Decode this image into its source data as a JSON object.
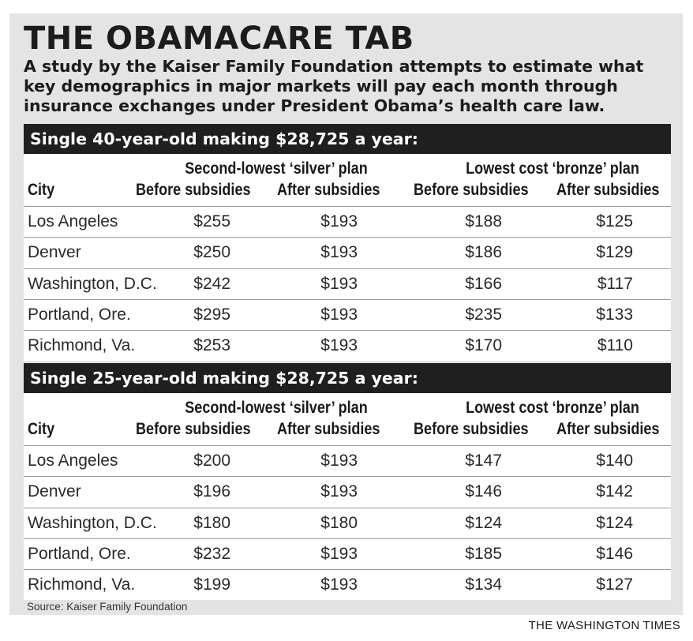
{
  "title": "THE OBAMACARE TAB",
  "subtitle": "A study by the Kaiser Family Foundation attempts to estimate what key demographics in major markets will pay each month through insurance exchanges under President Obama’s health care law.",
  "source": "Source: Kaiser Family Foundation",
  "credit": "THE WASHINGTON TIMES",
  "colors": {
    "panel": "#e4e4e4",
    "banner": "#1f1f1f",
    "table": "#ffffff",
    "rule": "#9a9a9a"
  },
  "chart_data": [
    {
      "type": "table",
      "title": "Single 40-year-old making $28,725 a year:",
      "group_headers": [
        "Second-lowest ‘silver’ plan",
        "Lowest cost ‘bronze’ plan"
      ],
      "columns": [
        "City",
        "Before subsidies",
        "After subsidies",
        "Before subsidies",
        "After subsidies"
      ],
      "rows": [
        [
          "Los Angeles",
          "$255",
          "$193",
          "$188",
          "$125"
        ],
        [
          "Denver",
          "$250",
          "$193",
          "$186",
          "$129"
        ],
        [
          "Washington, D.C.",
          "$242",
          "$193",
          "$166",
          "$117"
        ],
        [
          "Portland, Ore.",
          "$295",
          "$193",
          "$235",
          "$133"
        ],
        [
          "Richmond, Va.",
          "$253",
          "$193",
          "$170",
          "$110"
        ]
      ]
    },
    {
      "type": "table",
      "title": "Single 25-year-old making $28,725 a year:",
      "group_headers": [
        "Second-lowest ‘silver’ plan",
        "Lowest cost ‘bronze’ plan"
      ],
      "columns": [
        "City",
        "Before subsidies",
        "After subsidies",
        "Before subsidies",
        "After subsidies"
      ],
      "rows": [
        [
          "Los Angeles",
          "$200",
          "$193",
          "$147",
          "$140"
        ],
        [
          "Denver",
          "$196",
          "$193",
          "$146",
          "$142"
        ],
        [
          "Washington, D.C.",
          "$180",
          "$180",
          "$124",
          "$124"
        ],
        [
          "Portland, Ore.",
          "$232",
          "$193",
          "$185",
          "$146"
        ],
        [
          "Richmond, Va.",
          "$199",
          "$193",
          "$134",
          "$127"
        ]
      ]
    }
  ]
}
